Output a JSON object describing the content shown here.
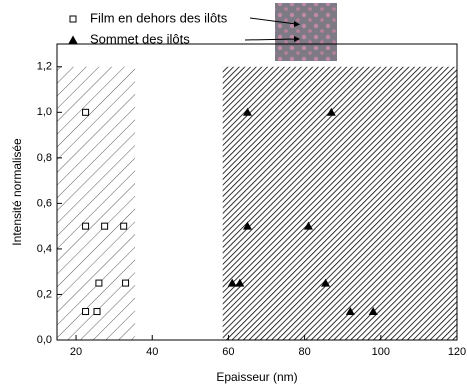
{
  "chart_data": {
    "type": "scatter",
    "xlabel": "Epaisseur (nm)",
    "ylabel": "Intensité normalisée",
    "xlim": [
      15,
      120
    ],
    "xticks": [
      20,
      40,
      60,
      80,
      100,
      120
    ],
    "ylim": [
      0,
      1.3
    ],
    "yticks": [
      {
        "value": 0,
        "label": "0,0"
      },
      {
        "value": 0.2,
        "label": "0,2"
      },
      {
        "value": 0.4,
        "label": "0,4"
      },
      {
        "value": 0.6,
        "label": "0,6"
      },
      {
        "value": 0.8,
        "label": "0,8"
      },
      {
        "value": 1.0,
        "label": "1,0"
      },
      {
        "value": 1.2,
        "label": "1,2"
      }
    ],
    "shaded_regions": [
      {
        "x": [
          15,
          35.5
        ],
        "y": [
          0,
          1.2
        ],
        "density": "light"
      },
      {
        "x": [
          58.5,
          120
        ],
        "y": [
          0,
          1.2
        ],
        "density": "dense"
      }
    ],
    "series": [
      {
        "name": "Film en dehors des ilôts",
        "marker": "square",
        "color": "#000000",
        "x": [
          22.5,
          22.5,
          27.5,
          32.5,
          26,
          33,
          22.5,
          25.5
        ],
        "values": [
          1.0,
          0.5,
          0.5,
          0.5,
          0.25,
          0.25,
          0.125,
          0.125
        ]
      },
      {
        "name": "Sommet des ilôts",
        "marker": "triangle",
        "color": "#000000",
        "x": [
          65,
          87,
          65,
          81,
          61,
          63,
          85.5,
          92,
          98
        ],
        "values": [
          1.0,
          1.0,
          0.5,
          0.5,
          0.25,
          0.25,
          0.25,
          0.125,
          0.125
        ]
      }
    ]
  }
}
